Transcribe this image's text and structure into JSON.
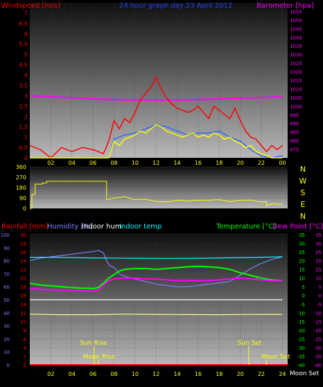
{
  "colors": {
    "wind": "#ff0000",
    "gust": "#ff0000",
    "baro": "#ff00ff",
    "windavg": "#3366ff",
    "dir": "#ffff00",
    "rain": "#ff0000",
    "humidity": "#8080ff",
    "inhum": "#ffffff",
    "intemp": "#00ffff",
    "temp": "#00ff00",
    "dew": "#ff00ff",
    "sun": "#ffff00",
    "yellowline": "#ffff80"
  },
  "chart_data": [
    {
      "type": "line",
      "title": "24 hour graph day  23 April 2012",
      "ylabel_left": "Windspeed [m/s]",
      "ylabel_right": "Barometer [hpa]",
      "x_tick_labels": [
        "02",
        "04",
        "06",
        "08",
        "10",
        "12",
        "14",
        "16",
        "18",
        "20",
        "22",
        "00"
      ],
      "x_hours": [
        2,
        4,
        6,
        8,
        10,
        12,
        14,
        16,
        18,
        20,
        22,
        24
      ],
      "xlim": [
        0,
        24.5
      ],
      "ylim_left": [
        0,
        7.5
      ],
      "ylim_right": [
        970,
        1060
      ],
      "left_ticks": [
        "0",
        "0.5",
        "1",
        "1.5",
        "2",
        "2.5",
        "3",
        "3.5",
        "4",
        "4.5",
        "5",
        "5.5",
        "6",
        "6.5",
        "7"
      ],
      "right_ticks": [
        "975",
        "980",
        "985",
        "990",
        "995",
        "1000",
        "1005",
        "1010",
        "1015",
        "1020",
        "1025",
        "1030",
        "1035",
        "1040",
        "1045",
        "1050",
        "1055"
      ],
      "series": [
        {
          "key": "baro",
          "axis": "right",
          "x": [
            0,
            2,
            4,
            6,
            8,
            10,
            12,
            14,
            16,
            18,
            20,
            22,
            24
          ],
          "values": [
            1006,
            1005.5,
            1004.8,
            1004.2,
            1003.8,
            1003.6,
            1003.5,
            1003.6,
            1003.8,
            1004.2,
            1004.6,
            1005,
            1005.5
          ]
        },
        {
          "key": "wind_avg",
          "axis": "left",
          "x": [
            0,
            2,
            4,
            6,
            7.5,
            8,
            9,
            10,
            11,
            12,
            13,
            14,
            15,
            16,
            17,
            18,
            19,
            20,
            21,
            22,
            23,
            24
          ],
          "values": [
            0,
            0,
            0,
            0,
            0,
            0.9,
            1.1,
            1.2,
            1.4,
            1.6,
            1.5,
            1.3,
            1.1,
            1.2,
            1.2,
            1.3,
            1.0,
            0.8,
            0.4,
            0.1,
            0,
            0.1
          ]
        },
        {
          "key": "gust",
          "axis": "left",
          "x": [
            0,
            1,
            2,
            3,
            4,
            5,
            6,
            7,
            7.5,
            8,
            8.5,
            9,
            9.5,
            10,
            10.5,
            11,
            11.5,
            12,
            12.5,
            13,
            13.5,
            14,
            14.5,
            15,
            15.5,
            16,
            16.5,
            17,
            17.5,
            18,
            18.5,
            19,
            19.5,
            20,
            20.5,
            21,
            21.5,
            22,
            22.5,
            23,
            23.5,
            24
          ],
          "values": [
            0.6,
            0.4,
            0,
            0.5,
            0.3,
            0.5,
            0.4,
            0.2,
            0.8,
            1.8,
            1.4,
            1.9,
            1.7,
            2.2,
            2.8,
            3.1,
            3.4,
            3.9,
            3.3,
            2.9,
            2.6,
            2.4,
            2.3,
            2.2,
            2.3,
            2.5,
            2.2,
            1.9,
            2.5,
            2.3,
            2.1,
            1.9,
            2.4,
            1.8,
            1.3,
            1.0,
            0.9,
            0.6,
            0.3,
            0.6,
            0.4,
            0.6
          ]
        },
        {
          "key": "wind_lull",
          "axis": "left",
          "x": [
            0,
            2,
            4,
            6,
            7.5,
            8,
            8.5,
            9,
            9.5,
            10,
            10.5,
            11,
            11.5,
            12,
            12.5,
            13,
            13.5,
            14,
            14.5,
            15,
            15.5,
            16,
            16.5,
            17,
            17.5,
            18,
            18.5,
            19,
            19.5,
            20,
            20.5,
            21,
            21.5,
            22,
            22.5,
            23,
            24
          ],
          "values": [
            0,
            0,
            0,
            0,
            0,
            0.8,
            0.6,
            0.9,
            1.0,
            1.1,
            1.3,
            1.2,
            1.4,
            1.6,
            1.5,
            1.3,
            1.2,
            1.1,
            1.0,
            1.1,
            1.2,
            1.0,
            1.1,
            1.0,
            1.2,
            1.1,
            0.9,
            1.0,
            0.8,
            0.7,
            0.5,
            0.6,
            0.3,
            0.2,
            0.1,
            0,
            0
          ]
        }
      ]
    },
    {
      "type": "line",
      "title": "",
      "ylabel_right_letters": [
        "N",
        "W",
        "S",
        "E",
        "N"
      ],
      "left_ticks": [
        "0",
        "90",
        "180",
        "270",
        "360"
      ],
      "ylim": [
        0,
        360
      ],
      "xlim": [
        0,
        24.5
      ],
      "series": [
        {
          "key": "wind_dir",
          "x": [
            0,
            0.2,
            0.2,
            0.5,
            0.5,
            1.2,
            1.2,
            1.6,
            1.6,
            3,
            5,
            7,
            7.3,
            7.3,
            8,
            9,
            10,
            11,
            12,
            13,
            14,
            15,
            16,
            17,
            18,
            19,
            20,
            21,
            22,
            22.5,
            22.5,
            23,
            24
          ],
          "values": [
            0,
            0,
            120,
            120,
            210,
            210,
            220,
            220,
            235,
            235,
            235,
            235,
            235,
            75,
            90,
            100,
            75,
            80,
            60,
            55,
            70,
            65,
            70,
            70,
            75,
            60,
            70,
            70,
            55,
            60,
            25,
            40,
            35
          ]
        }
      ]
    },
    {
      "type": "line",
      "title": "",
      "ylabel_rain": "Rainfall [mm]",
      "ylabel_humidity": "Humidity [%]",
      "ylabel_inhum": "Indoor hum",
      "ylabel_intemp": "Indoor temp",
      "ylabel_temp": "Temperature [°C]",
      "ylabel_dew": "Dew Point [°C]",
      "xlim": [
        0,
        24.5
      ],
      "x_tick_labels": [
        "02",
        "04",
        "06",
        "08",
        "10",
        "12",
        "14",
        "16",
        "18",
        "20",
        "22",
        "24"
      ],
      "x_hours": [
        2,
        4,
        6,
        8,
        10,
        12,
        14,
        16,
        18,
        20,
        22,
        24
      ],
      "rain_ticks": [
        "0",
        "2",
        "4",
        "6",
        "8",
        "10",
        "12",
        "14",
        "16",
        "18",
        "20",
        "22",
        "24",
        "26",
        "28",
        "30"
      ],
      "rain_lim": [
        0,
        30
      ],
      "humidity_ticks": [
        "0",
        "10",
        "20",
        "30",
        "40",
        "50",
        "60",
        "70",
        "80",
        "90",
        "100"
      ],
      "humidity_lim": [
        0,
        100
      ],
      "temp_ticks": [
        "-40",
        "-35",
        "-30",
        "-25",
        "-20",
        "-15",
        "-10",
        "-5",
        "0",
        "5",
        "10",
        "15",
        "20",
        "25",
        "30",
        "35"
      ],
      "temp_lim": [
        -40,
        35
      ],
      "sun_rise_label": "Sun Rise",
      "sun_rise_hour": 6.1,
      "sun_set_label": "Sun Set",
      "sun_set_hour": 20.8,
      "moon_rise_label": "Moon Rise",
      "moon_rise_hour": 6.5,
      "moon_set_label": "Moon Set",
      "moon_set_hour": 22.5,
      "moon_set_label_right": "Moon Set",
      "series": [
        {
          "key": "humidity",
          "axis": "humidity",
          "x": [
            0,
            1,
            2,
            3,
            4,
            5,
            6,
            6.5,
            7,
            7.3,
            7.6,
            8,
            8.5,
            9,
            10,
            11,
            12,
            13,
            14,
            15,
            16,
            17,
            18,
            19,
            20,
            21,
            22,
            23,
            24
          ],
          "values": [
            80,
            82,
            83,
            84,
            85,
            86,
            87,
            88,
            86,
            80,
            76,
            75,
            70,
            68,
            66,
            64,
            62,
            61,
            60,
            60,
            61,
            62,
            63,
            64,
            69,
            74,
            78,
            81,
            83
          ]
        },
        {
          "key": "indoor_temp",
          "axis": "temp",
          "x": [
            0,
            2,
            4,
            6,
            8,
            10,
            12,
            14,
            16,
            18,
            20,
            22,
            24
          ],
          "values": [
            22,
            22,
            21.8,
            21.6,
            21.5,
            21.4,
            21.3,
            21.3,
            21.4,
            21.6,
            21.8,
            22,
            22.3
          ]
        },
        {
          "key": "temperature",
          "axis": "temp",
          "x": [
            0,
            1,
            2,
            3,
            4,
            5,
            6,
            6.5,
            7,
            7.5,
            8,
            8.5,
            9,
            10,
            11,
            12,
            13,
            14,
            15,
            16,
            17,
            18,
            19,
            20,
            21,
            22,
            23,
            24
          ],
          "values": [
            7,
            6,
            5.5,
            5,
            4.5,
            4.2,
            4,
            4.5,
            7,
            10,
            12,
            14,
            15,
            15.5,
            15.5,
            15,
            15.5,
            16,
            16.5,
            16.8,
            16.5,
            16,
            15,
            13,
            11.5,
            10,
            9,
            8.5
          ]
        },
        {
          "key": "dew_point",
          "axis": "temp",
          "x": [
            0,
            1,
            2,
            3,
            4,
            5,
            6,
            6.5,
            7,
            7.5,
            8,
            9,
            10,
            11,
            12,
            13,
            14,
            15,
            16,
            17,
            18,
            19,
            20,
            21,
            22,
            23,
            24
          ],
          "values": [
            4,
            3.5,
            3.2,
            3,
            2.8,
            2.7,
            2.5,
            3,
            6,
            8.5,
            9.5,
            10,
            10,
            9.5,
            9.5,
            9,
            8.5,
            8.5,
            8.5,
            8.5,
            9,
            9.5,
            10,
            9.5,
            9,
            8.5,
            8.5
          ]
        },
        {
          "key": "indoor_humidity",
          "axis": "humidity",
          "x": [
            0,
            24
          ],
          "values": [
            50,
            50
          ]
        },
        {
          "key": "rain_ref",
          "axis": "humidity",
          "x": [
            0,
            3,
            6,
            9,
            12,
            15,
            18,
            21,
            24
          ],
          "values": [
            39,
            38.5,
            38.5,
            39,
            38.8,
            38.6,
            38.5,
            38.7,
            38.8
          ]
        }
      ]
    }
  ]
}
